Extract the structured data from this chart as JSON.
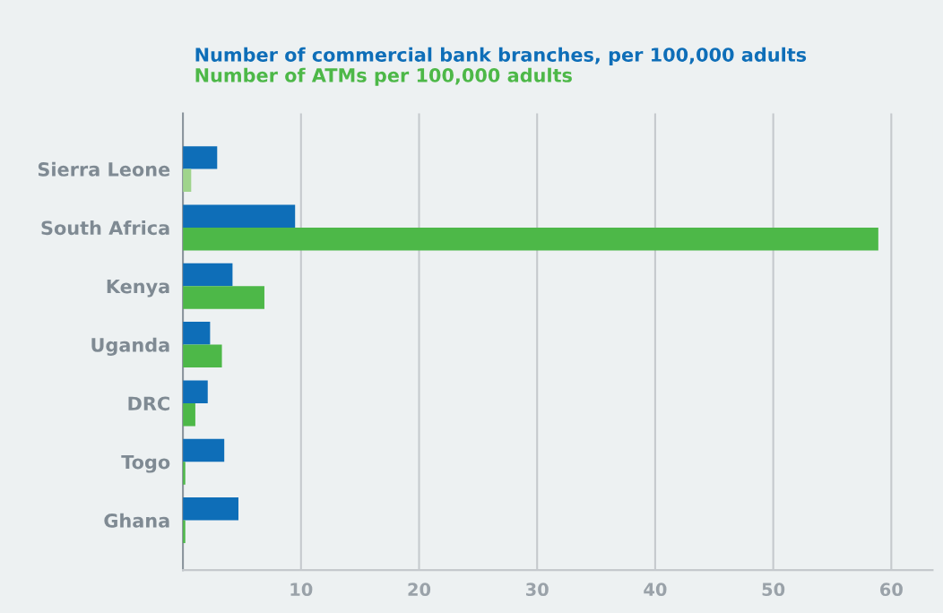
{
  "chart_data": {
    "type": "bar",
    "orientation": "horizontal",
    "categories": [
      "Sierra Leone",
      "South Africa",
      "Kenya",
      "Uganda",
      "DRC",
      "Togo",
      "Ghana"
    ],
    "series": [
      {
        "name": "Number of commercial bank branches, per 100,000 adults",
        "color": "#0e6eb8",
        "values": [
          2.9,
          9.5,
          4.2,
          2.3,
          2.1,
          3.5,
          4.7
        ]
      },
      {
        "name": "Number of ATMs per 100,000 adults",
        "color": "#4db848",
        "colors": [
          "#9fd48c",
          "#4db848",
          "#4db848",
          "#4db848",
          "#4db848",
          "#4db848",
          "#4db848"
        ],
        "values": [
          0.7,
          58.9,
          6.9,
          3.3,
          1.05,
          0.2,
          0.2
        ]
      }
    ],
    "xlim": [
      0,
      63.5
    ],
    "xticks": [
      10,
      20,
      30,
      40,
      50,
      60
    ],
    "grid": "x",
    "legend": "top left"
  }
}
